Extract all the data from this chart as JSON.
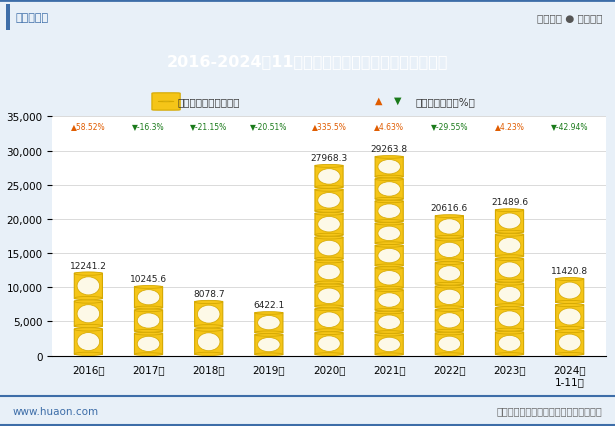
{
  "title": "2016-2024年11月大连商品交易所豆一期货成交金额",
  "categories": [
    "2016年",
    "2017年",
    "2018年",
    "2019年",
    "2020年",
    "2021年",
    "2022年",
    "2023年",
    "2024年\n1-11月"
  ],
  "values": [
    12241.2,
    10245.6,
    8078.7,
    6422.1,
    27968.3,
    29263.8,
    20616.6,
    21489.6,
    11420.8
  ],
  "growth_labels": [
    "▲58.52%",
    "▼-16.3%",
    "▼-21.15%",
    "▼-20.51%",
    "▲335.5%",
    "▲4.63%",
    "▼-29.55%",
    "▲4.23%",
    "▼-42.94%"
  ],
  "growth_up_color": "#e05c00",
  "growth_down_color": "#1a7a1a",
  "growth_up": [
    true,
    false,
    false,
    false,
    true,
    true,
    false,
    true,
    false
  ],
  "bar_color": "#F5C518",
  "bar_edge_color": "#D4A800",
  "ylim": [
    0,
    35000
  ],
  "yticks": [
    0,
    5000,
    10000,
    15000,
    20000,
    25000,
    30000,
    35000
  ],
  "legend_bar_label": "期货成交金额（亿元）",
  "legend_tri_label": "累计同比增长（%）",
  "header_bg": "#3d6da8",
  "bg_color": "#e8f0f8",
  "plot_bg": "#ffffff",
  "footer_left": "www.huaon.com",
  "footer_right": "数据来源：证监局，华经产业研究院整理",
  "logo_left": "华经情报网",
  "logo_right": "专业严谨 ● 客观科学"
}
